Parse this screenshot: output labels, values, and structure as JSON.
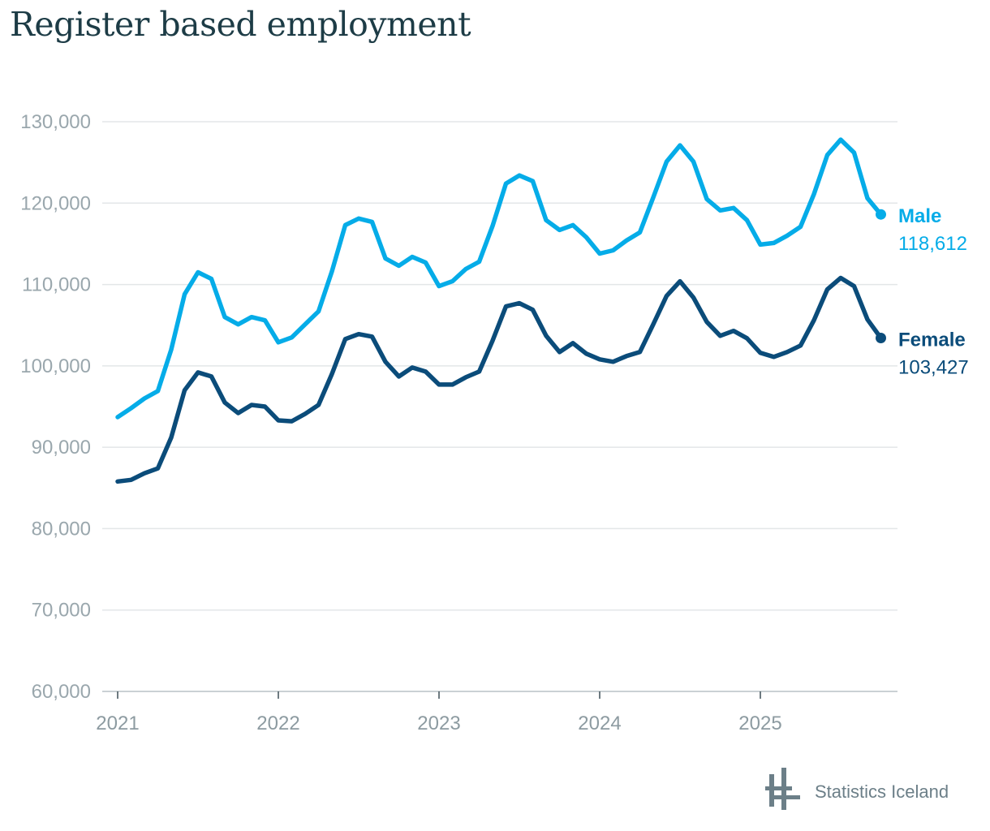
{
  "title": "Register based employment",
  "logo": {
    "text": "Statistics Iceland",
    "icon": "statistics-iceland-logo-icon"
  },
  "colors": {
    "male": "#05ace8",
    "female": "#0b4c7a",
    "grid": "#e3e6e8",
    "axis": "#9aa7ad"
  },
  "chart_data": {
    "type": "line",
    "title": "Register based employment",
    "xlabel": "",
    "ylabel": "",
    "ylim": [
      60000,
      130000
    ],
    "yticks": [
      60000,
      70000,
      80000,
      90000,
      100000,
      110000,
      120000,
      130000
    ],
    "ytick_labels": [
      "60,000",
      "70,000",
      "80,000",
      "90,000",
      "100,000",
      "110,000",
      "120,000",
      "130,000"
    ],
    "x_start": "2021-01",
    "xticks": [
      "2021",
      "2022",
      "2023",
      "2024",
      "2025"
    ],
    "grid": true,
    "series": [
      {
        "name": "Male",
        "end_label": "118,612",
        "color": "#05ace8",
        "values": [
          93700,
          94800,
          96000,
          96900,
          102000,
          108800,
          111500,
          110700,
          106000,
          105100,
          106000,
          105600,
          102900,
          103500,
          105100,
          106700,
          111600,
          117300,
          118100,
          117700,
          113200,
          112300,
          113400,
          112700,
          109800,
          110400,
          111900,
          112800,
          117200,
          122400,
          123400,
          122700,
          117900,
          116700,
          117300,
          115800,
          113800,
          114200,
          115400,
          116400,
          120700,
          125100,
          127100,
          125100,
          120500,
          119100,
          119400,
          117900,
          114900,
          115100,
          116000,
          117100,
          121100,
          125900,
          127800,
          126200,
          120600,
          118612
        ]
      },
      {
        "name": "Female",
        "end_label": "103,427",
        "color": "#0b4c7a",
        "values": [
          85800,
          86000,
          86800,
          87400,
          91200,
          97000,
          99200,
          98700,
          95500,
          94200,
          95200,
          95000,
          93300,
          93200,
          94100,
          95200,
          99000,
          103300,
          103900,
          103600,
          100500,
          98700,
          99800,
          99300,
          97700,
          97700,
          98600,
          99300,
          103100,
          107300,
          107700,
          106900,
          103700,
          101700,
          102800,
          101500,
          100800,
          100500,
          101200,
          101700,
          105100,
          108600,
          110400,
          108400,
          105400,
          103700,
          104300,
          103400,
          101600,
          101100,
          101700,
          102500,
          105600,
          109400,
          110800,
          109800,
          105700,
          103427
        ]
      }
    ]
  }
}
